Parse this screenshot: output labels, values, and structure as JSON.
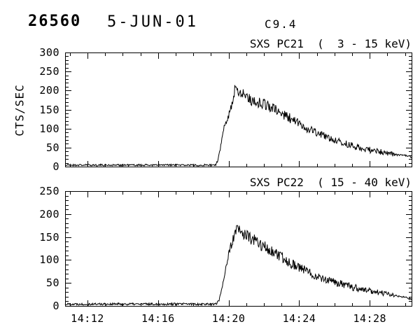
{
  "header": {
    "event_id": "26560",
    "date": "5-JUN-01",
    "goes_class": "C9.4"
  },
  "colors": {
    "foreground": "#000000",
    "background": "#ffffff"
  },
  "x_axis": {
    "tick_labels": [
      "14:12",
      "14:16",
      "14:20",
      "14:24",
      "14:28"
    ],
    "minor_step_minutes": 1,
    "range_minutes_after_14": [
      10.73,
      30.37
    ]
  },
  "chart_data": [
    {
      "type": "line",
      "title": "SXS PC21  (  3 - 15 keV)",
      "instrument": "SXS PC21",
      "energy_band": "3 - 15 keV",
      "ylabel": "CTS/SEC",
      "ylim": [
        0,
        300
      ],
      "ytick_values": [
        0,
        50,
        100,
        150,
        200,
        250,
        300
      ],
      "ytick_labels": [
        "0",
        "50",
        "100",
        "150",
        "200",
        "250",
        "300"
      ],
      "yminor_step": 10,
      "xlim": [
        10.73,
        30.37
      ],
      "xtick_minutes": [
        12,
        16,
        20,
        24,
        28
      ],
      "xtick_labels": [
        "14:12",
        "14:16",
        "14:20",
        "14:24",
        "14:28"
      ],
      "xminor_step": 1,
      "show_xtick_labels": false,
      "seed": 21,
      "line_color": "#000000",
      "series": [
        {
          "name": "SXS PC21 counts",
          "units": "CTS/SEC vs minutes after 14:00",
          "keypoints": [
            [
              10.73,
              4
            ],
            [
              19.25,
              4
            ],
            [
              19.4,
              15
            ],
            [
              19.55,
              55
            ],
            [
              19.75,
              105
            ],
            [
              19.9,
              128
            ],
            [
              20.05,
              140
            ],
            [
              20.2,
              168
            ],
            [
              20.4,
              210
            ],
            [
              20.5,
              212
            ],
            [
              20.6,
              194
            ],
            [
              20.8,
              193
            ],
            [
              21.0,
              186
            ],
            [
              21.3,
              174
            ],
            [
              21.7,
              168
            ],
            [
              22.1,
              164
            ],
            [
              22.6,
              150
            ],
            [
              23.1,
              137
            ],
            [
              23.7,
              121
            ],
            [
              24.3,
              104
            ],
            [
              25.0,
              89
            ],
            [
              25.6,
              77
            ],
            [
              26.2,
              66
            ],
            [
              26.9,
              56
            ],
            [
              27.5,
              48
            ],
            [
              28.1,
              43
            ],
            [
              28.7,
              38
            ],
            [
              29.2,
              34
            ],
            [
              29.5,
              31
            ],
            [
              30.0,
              29
            ],
            [
              30.37,
              26
            ]
          ],
          "noise_amplitude": [
            [
              10.73,
              2.5
            ],
            [
              19.2,
              2.5
            ],
            [
              19.6,
              6
            ],
            [
              20.0,
              12
            ],
            [
              20.4,
              16
            ],
            [
              21.0,
              16
            ],
            [
              22.0,
              15
            ],
            [
              23.5,
              13
            ],
            [
              25.0,
              11
            ],
            [
              27.0,
              9
            ],
            [
              28.5,
              8
            ],
            [
              29.25,
              7
            ],
            [
              29.45,
              2.5
            ],
            [
              30.37,
              3
            ]
          ]
        }
      ]
    },
    {
      "type": "line",
      "title": "SXS PC22  ( 15 - 40 keV)",
      "instrument": "SXS PC22",
      "energy_band": "15 - 40 keV",
      "ylabel": "",
      "ylim": [
        0,
        250
      ],
      "ytick_values": [
        0,
        50,
        100,
        150,
        200,
        250
      ],
      "ytick_labels": [
        "0",
        "50",
        "100",
        "150",
        "200",
        "250"
      ],
      "yminor_step": 10,
      "xlim": [
        10.73,
        30.37
      ],
      "xtick_minutes": [
        12,
        16,
        20,
        24,
        28
      ],
      "xtick_labels": [
        "14:12",
        "14:16",
        "14:20",
        "14:24",
        "14:28"
      ],
      "xminor_step": 1,
      "show_xtick_labels": true,
      "seed": 22,
      "line_color": "#000000",
      "series": [
        {
          "name": "SXS PC22 counts",
          "units": "CTS/SEC vs minutes after 14:00",
          "keypoints": [
            [
              10.73,
              4
            ],
            [
              19.3,
              4
            ],
            [
              19.45,
              12
            ],
            [
              19.65,
              45
            ],
            [
              19.9,
              95
            ],
            [
              20.1,
              125
            ],
            [
              20.3,
              152
            ],
            [
              20.5,
              168
            ],
            [
              20.65,
              161
            ],
            [
              20.9,
              156
            ],
            [
              21.2,
              148
            ],
            [
              21.6,
              139
            ],
            [
              22.1,
              127
            ],
            [
              22.6,
              114
            ],
            [
              23.2,
              100
            ],
            [
              23.8,
              88
            ],
            [
              24.4,
              76
            ],
            [
              25.0,
              65
            ],
            [
              25.7,
              55
            ],
            [
              26.4,
              47
            ],
            [
              27.1,
              40
            ],
            [
              27.8,
              34
            ],
            [
              28.4,
              30
            ],
            [
              29.0,
              26
            ],
            [
              29.5,
              22
            ],
            [
              29.9,
              19
            ],
            [
              30.37,
              16
            ]
          ],
          "noise_amplitude": [
            [
              10.73,
              2.5
            ],
            [
              19.3,
              2.5
            ],
            [
              19.7,
              5
            ],
            [
              20.1,
              10
            ],
            [
              20.5,
              14
            ],
            [
              21.2,
              14
            ],
            [
              22.5,
              12
            ],
            [
              24.0,
              11
            ],
            [
              25.5,
              9
            ],
            [
              27.0,
              8
            ],
            [
              28.5,
              6
            ],
            [
              29.4,
              5
            ],
            [
              29.6,
              2
            ],
            [
              30.1,
              2
            ],
            [
              30.37,
              3.5
            ]
          ]
        }
      ]
    }
  ]
}
